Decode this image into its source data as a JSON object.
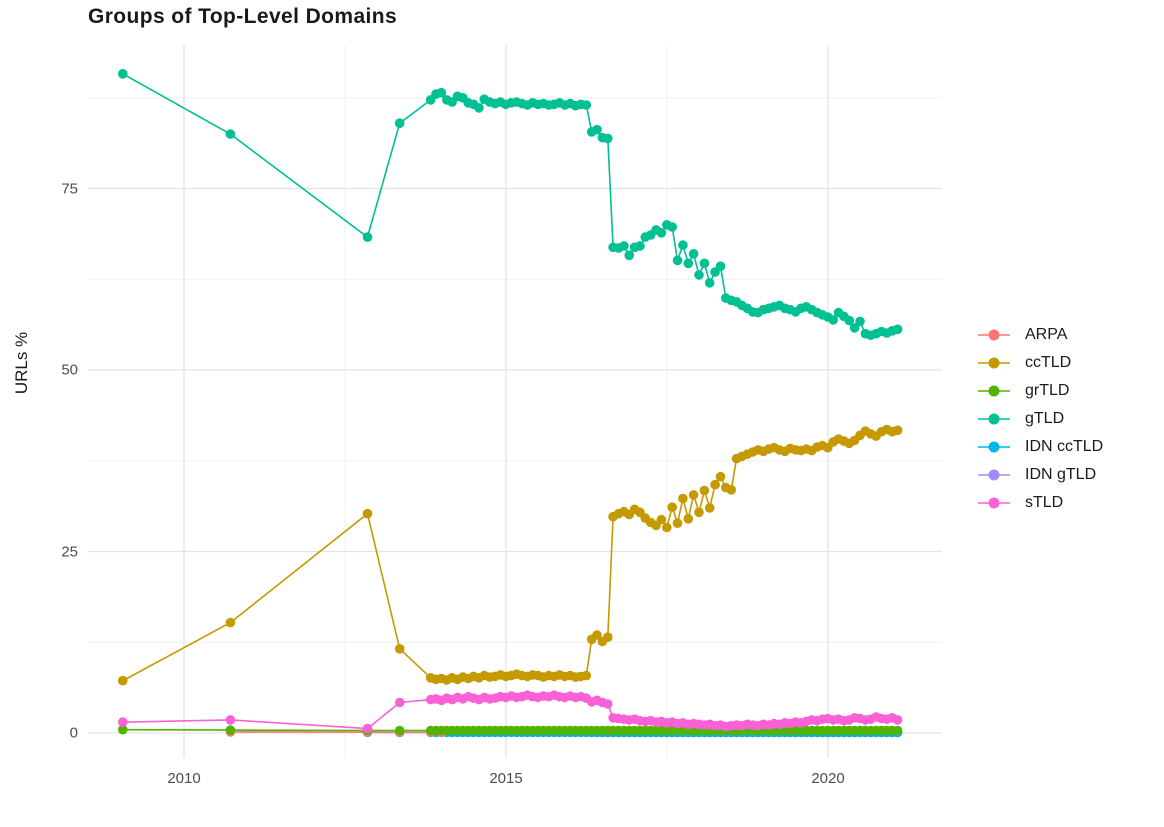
{
  "title": "Groups of Top-Level Domains",
  "axes": {
    "y_label": "URLs %",
    "x_ticks": [
      {
        "label": "2010",
        "value": 2010
      },
      {
        "label": "2015",
        "value": 2015
      },
      {
        "label": "2020",
        "value": 2020
      }
    ],
    "y_ticks": [
      {
        "label": "0",
        "value": 0
      },
      {
        "label": "25",
        "value": 25
      },
      {
        "label": "50",
        "value": 50
      },
      {
        "label": "75",
        "value": 75
      }
    ]
  },
  "chart_data": {
    "type": "line",
    "title": "Groups of Top-Level Domains",
    "xlabel": "",
    "ylabel": "URLs %",
    "xlim": [
      2008.5,
      2021.7
    ],
    "ylim": [
      -3.5,
      95
    ],
    "grid": "on",
    "legend_position": "right",
    "x_major": [
      2010,
      2015,
      2020
    ],
    "x_minor": [
      2012.5,
      2017.5
    ],
    "y_major": [
      0,
      25,
      50,
      75
    ],
    "y_minor": [
      12.5,
      37.5,
      62.5,
      87.5
    ],
    "dense_step_years": 0.083333,
    "draw_order": [
      "IDN gTLD",
      "IDN ccTLD",
      "ARPA",
      "ccTLD",
      "grTLD",
      "gTLD",
      "sTLD"
    ],
    "series": [
      {
        "name": "ARPA",
        "color": "#F8766D",
        "pairs": [
          [
            2010.72,
            0.15
          ],
          [
            2012.85,
            0.12
          ],
          [
            2013.35,
            0.1
          ],
          [
            2013.83,
            0.1
          ],
          [
            2014.0,
            0.1
          ]
        ]
      },
      {
        "name": "ccTLD",
        "color": "#C49A00",
        "pairs": [
          [
            2009.05,
            7.2
          ],
          [
            2010.72,
            15.2
          ],
          [
            2012.85,
            30.2
          ],
          [
            2013.35,
            11.6
          ]
        ],
        "dense": {
          "start": 2013.83,
          "values": [
            7.6,
            7.4,
            7.5,
            7.3,
            7.6,
            7.4,
            7.7,
            7.5,
            7.8,
            7.6,
            7.9,
            7.7,
            7.8,
            8.0,
            7.8,
            7.9,
            8.1,
            7.9,
            7.8,
            8.0,
            7.9,
            7.7,
            7.9,
            7.8,
            8.0,
            7.8,
            7.9,
            7.7,
            7.8,
            7.9,
            12.9,
            13.5,
            12.6,
            13.2,
            29.8,
            30.2,
            30.5,
            30.1,
            30.8,
            30.4,
            29.6,
            29.0,
            28.6,
            29.4,
            28.3,
            31.1,
            28.9,
            32.3,
            29.5,
            32.8,
            30.4,
            33.4,
            31.0,
            34.2,
            35.3,
            33.8,
            33.5,
            37.8,
            38.1,
            38.4,
            38.7,
            39.0,
            38.8,
            39.1,
            39.3,
            39.0,
            38.8,
            39.2,
            39.0,
            38.9,
            39.1,
            38.9,
            39.4,
            39.6,
            39.3,
            40.1,
            40.5,
            40.2,
            39.9,
            40.3,
            41.0,
            41.6,
            41.2,
            40.9,
            41.5,
            41.8,
            41.5,
            41.7
          ]
        }
      },
      {
        "name": "grTLD",
        "color": "#53B400",
        "pairs": [
          [
            2009.05,
            0.45
          ],
          [
            2010.72,
            0.4
          ],
          [
            2012.85,
            0.35
          ],
          [
            2013.35,
            0.35
          ]
        ],
        "dense": {
          "start": 2013.83,
          "count": 88,
          "value": 0.35
        }
      },
      {
        "name": "gTLD",
        "color": "#00C094",
        "pairs": [
          [
            2009.05,
            90.8
          ],
          [
            2010.72,
            82.5
          ],
          [
            2012.85,
            68.3
          ],
          [
            2013.35,
            84.0
          ]
        ],
        "dense": {
          "start": 2013.83,
          "values": [
            87.2,
            88.0,
            88.2,
            87.2,
            86.9,
            87.7,
            87.5,
            86.8,
            86.6,
            86.1,
            87.3,
            86.9,
            86.7,
            86.9,
            86.6,
            86.8,
            86.9,
            86.7,
            86.5,
            86.8,
            86.6,
            86.7,
            86.5,
            86.6,
            86.8,
            86.5,
            86.7,
            86.4,
            86.6,
            86.5,
            82.8,
            83.1,
            82.0,
            81.9,
            66.9,
            66.8,
            67.1,
            65.8,
            66.9,
            67.1,
            68.3,
            68.6,
            69.3,
            68.9,
            70.0,
            69.7,
            65.1,
            67.2,
            64.7,
            66.0,
            63.1,
            64.7,
            62.0,
            63.5,
            64.3,
            59.9,
            59.6,
            59.4,
            58.9,
            58.5,
            58.0,
            57.9,
            58.3,
            58.5,
            58.7,
            58.9,
            58.5,
            58.3,
            58.0,
            58.5,
            58.7,
            58.3,
            57.9,
            57.6,
            57.3,
            56.9,
            57.9,
            57.4,
            56.8,
            55.8,
            56.7,
            55.0,
            54.8,
            55.0,
            55.3,
            55.1,
            55.4,
            55.6
          ]
        }
      },
      {
        "name": "IDN ccTLD",
        "color": "#00B6EB",
        "pairs": [
          [
            2012.85,
            0.1
          ],
          [
            2013.35,
            0.1
          ]
        ],
        "dense": {
          "start": 2013.83,
          "count": 88,
          "value": 0.1
        }
      },
      {
        "name": "IDN gTLD",
        "color": "#A58AFF",
        "pairs": [],
        "dense": {
          "start": 2016.33,
          "count": 58,
          "value": 0.05
        }
      },
      {
        "name": "sTLD",
        "color": "#FB61D7",
        "pairs": [
          [
            2009.05,
            1.5
          ],
          [
            2010.72,
            1.8
          ],
          [
            2012.85,
            0.6
          ],
          [
            2013.35,
            4.2
          ]
        ],
        "dense": {
          "start": 2013.83,
          "values": [
            4.6,
            4.7,
            4.5,
            4.8,
            4.6,
            4.9,
            4.7,
            5.0,
            4.8,
            4.6,
            4.9,
            4.7,
            4.8,
            5.0,
            4.9,
            5.1,
            4.9,
            5.0,
            5.2,
            5.0,
            4.9,
            5.1,
            5.0,
            5.2,
            5.0,
            4.9,
            5.1,
            4.9,
            5.0,
            4.8,
            4.3,
            4.5,
            4.2,
            4.0,
            2.1,
            2.0,
            1.9,
            1.8,
            1.9,
            1.7,
            1.6,
            1.7,
            1.5,
            1.6,
            1.4,
            1.5,
            1.3,
            1.4,
            1.2,
            1.3,
            1.2,
            1.1,
            1.2,
            1.0,
            1.1,
            0.9,
            1.0,
            1.1,
            1.0,
            1.2,
            1.1,
            1.0,
            1.2,
            1.1,
            1.3,
            1.2,
            1.4,
            1.3,
            1.5,
            1.4,
            1.6,
            1.8,
            1.7,
            1.9,
            2.0,
            1.8,
            1.9,
            1.7,
            1.8,
            2.1,
            2.0,
            1.8,
            1.9,
            2.2,
            2.0,
            1.9,
            2.1,
            1.8
          ]
        }
      }
    ]
  },
  "style": {
    "grid_major_color": "#e3e3e3",
    "grid_minor_color": "#f0f0f0",
    "background": "#ffffff"
  }
}
